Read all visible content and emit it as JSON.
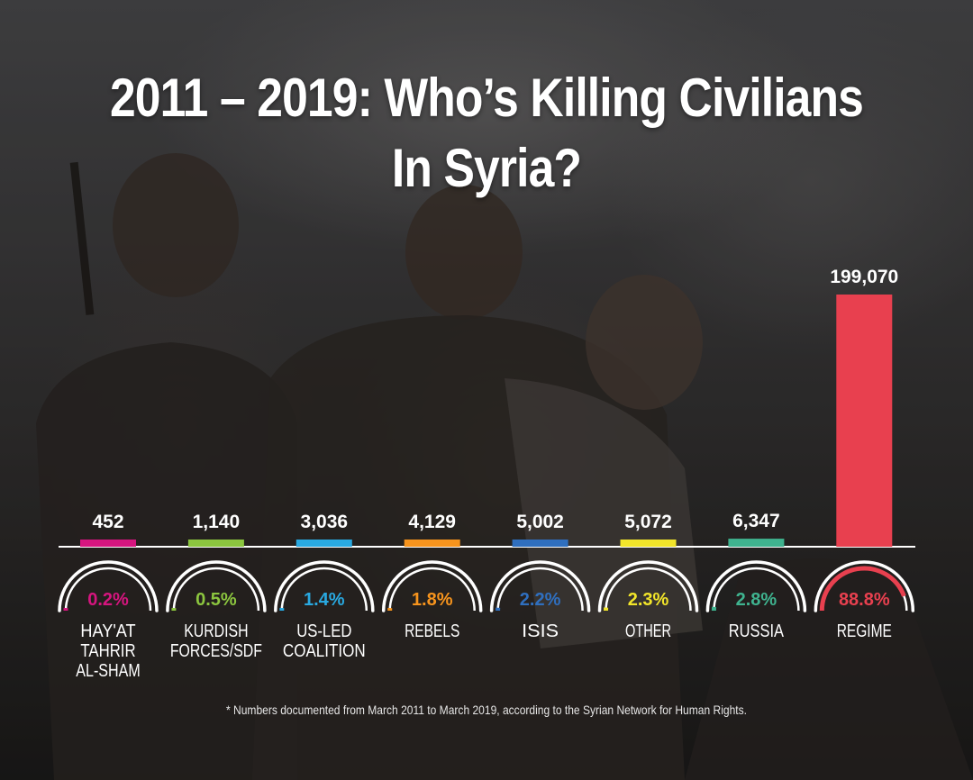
{
  "title_line1": "2011 – 2019: Who’s Killing Civilians",
  "title_line2": "In Syria?",
  "footnote": "* Numbers documented from March 2011 to March 2019, according to the Syrian Network for Human Rights.",
  "chart_data": {
    "type": "bar",
    "title": "2011 – 2019: Who’s Killing Civilians In Syria?",
    "categories": [
      [
        "HAY'AT",
        "TAHRIR",
        "AL-SHAM"
      ],
      [
        "KURDISH",
        "FORCES/SDF"
      ],
      [
        "US-LED",
        "COALITION"
      ],
      [
        "REBELS"
      ],
      [
        "ISIS"
      ],
      [
        "OTHER"
      ],
      [
        "RUSSIA"
      ],
      [
        "REGIME"
      ]
    ],
    "values": [
      452,
      1140,
      3036,
      4129,
      5002,
      5072,
      6347,
      199070
    ],
    "value_labels": [
      "452",
      "1,140",
      "3,036",
      "4,129",
      "5,002",
      "5,072",
      "6,347",
      "199,070"
    ],
    "percents": [
      0.2,
      0.5,
      1.4,
      1.8,
      2.2,
      2.3,
      2.8,
      88.8
    ],
    "percent_labels": [
      "0.2%",
      "0.5%",
      "1.4%",
      "1.8%",
      "2.2%",
      "2.3%",
      "2.8%",
      "88.8%"
    ],
    "colors": [
      "#d6157f",
      "#8cc63f",
      "#29a9e1",
      "#f7941d",
      "#2f6fbf",
      "#f2e52a",
      "#3fb38f",
      "#e8404f"
    ],
    "ylim": [
      0,
      199070
    ]
  }
}
